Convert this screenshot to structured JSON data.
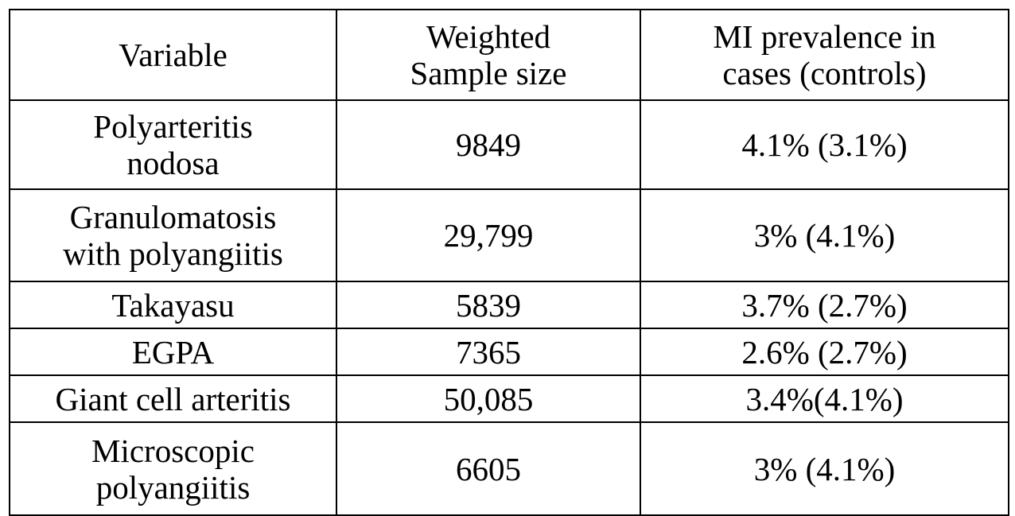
{
  "table": {
    "headers": [
      [
        "Variable"
      ],
      [
        "Weighted",
        "Sample size"
      ],
      [
        "MI prevalence in",
        "cases (controls)"
      ]
    ],
    "rows": [
      {
        "variable": [
          "Polyarteritis",
          "nodosa"
        ],
        "sample_size": "9849",
        "prevalence": "4.1% (3.1%)"
      },
      {
        "variable": [
          "Granulomatosis",
          "with polyangiitis"
        ],
        "sample_size": "29,799",
        "prevalence": "3% (4.1%)"
      },
      {
        "variable": [
          "Takayasu"
        ],
        "sample_size": "5839",
        "prevalence": "3.7% (2.7%)"
      },
      {
        "variable": [
          "EGPA"
        ],
        "sample_size": "7365",
        "prevalence": "2.6% (2.7%)"
      },
      {
        "variable": [
          "Giant cell arteritis"
        ],
        "sample_size": "50,085",
        "prevalence": "3.4%(4.1%)"
      },
      {
        "variable": [
          "Microscopic",
          "polyangiitis"
        ],
        "sample_size": "6605",
        "prevalence": "3% (4.1%)"
      }
    ]
  }
}
